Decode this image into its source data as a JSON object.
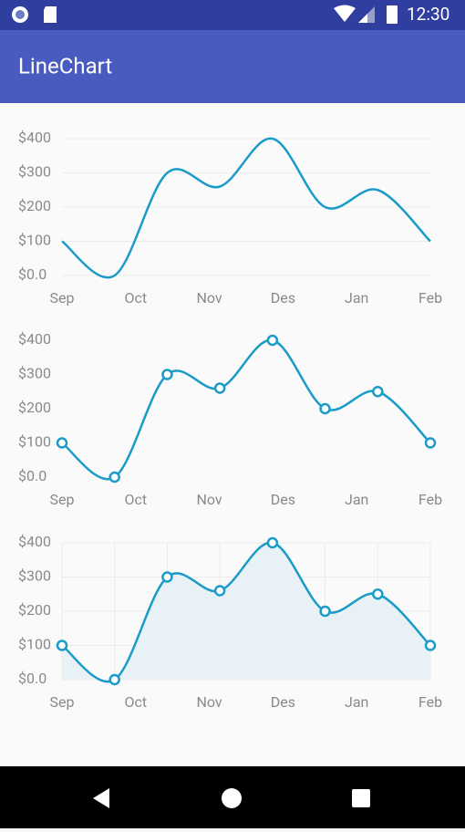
{
  "status_bar": {
    "time": "12:30"
  },
  "app_bar": {
    "title": "LineChart"
  },
  "chart_data": [
    {
      "type": "line",
      "xticks": [
        "Sep",
        "Oct",
        "Nov",
        "Des",
        "Jan",
        "Feb"
      ],
      "values": [
        100,
        0,
        300,
        260,
        400,
        200,
        250,
        100
      ],
      "color": "#1b9bc7",
      "ylim": [
        0,
        400
      ],
      "yticks": [
        {
          "value": 0,
          "label": "$0.0"
        },
        {
          "value": 100,
          "label": "$100"
        },
        {
          "value": 200,
          "label": "$200"
        },
        {
          "value": 300,
          "label": "$300"
        },
        {
          "value": 400,
          "label": "$400"
        }
      ],
      "smooth": true,
      "markers": false,
      "area": false,
      "grid": true,
      "vertical_grid": false
    },
    {
      "type": "line",
      "xticks": [
        "Sep",
        "Oct",
        "Nov",
        "Des",
        "Jan",
        "Feb"
      ],
      "values": [
        100,
        0,
        300,
        260,
        400,
        200,
        250,
        100
      ],
      "color": "#1b9bc7",
      "ylim": [
        0,
        400
      ],
      "yticks": [
        {
          "value": 0,
          "label": "$0.0"
        },
        {
          "value": 100,
          "label": "$100"
        },
        {
          "value": 200,
          "label": "$200"
        },
        {
          "value": 300,
          "label": "$300"
        },
        {
          "value": 400,
          "label": "$400"
        }
      ],
      "smooth": true,
      "markers": true,
      "area": false,
      "grid": false,
      "vertical_grid": false
    },
    {
      "type": "line",
      "xticks": [
        "Sep",
        "Oct",
        "Nov",
        "Des",
        "Jan",
        "Feb"
      ],
      "values": [
        100,
        0,
        300,
        260,
        400,
        200,
        250,
        100
      ],
      "color": "#1b9bc7",
      "ylim": [
        0,
        400
      ],
      "yticks": [
        {
          "value": 0,
          "label": "$0.0"
        },
        {
          "value": 100,
          "label": "$100"
        },
        {
          "value": 200,
          "label": "$200"
        },
        {
          "value": 300,
          "label": "$300"
        },
        {
          "value": 400,
          "label": "$400"
        }
      ],
      "smooth": true,
      "markers": true,
      "area": true,
      "area_color": "#e8f1f5",
      "grid": true,
      "vertical_grid": true
    }
  ]
}
